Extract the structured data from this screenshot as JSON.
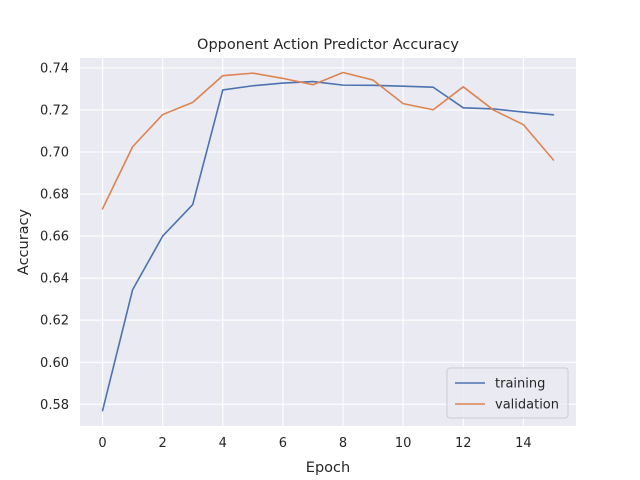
{
  "chart_data": {
    "type": "line",
    "title": "Opponent Action Predictor Accuracy",
    "xlabel": "Epoch",
    "ylabel": "Accuracy",
    "xlim": [
      -0.75,
      15.75
    ],
    "ylim": [
      0.5697,
      0.7447
    ],
    "xticks": [
      0,
      2,
      4,
      6,
      8,
      10,
      12,
      14
    ],
    "yticks": [
      0.58,
      0.6,
      0.62,
      0.64,
      0.66,
      0.68,
      0.7,
      0.72,
      0.74
    ],
    "xtick_labels": [
      "0",
      "2",
      "4",
      "6",
      "8",
      "10",
      "12",
      "14"
    ],
    "ytick_labels": [
      "0.58",
      "0.60",
      "0.62",
      "0.64",
      "0.66",
      "0.68",
      "0.70",
      "0.72",
      "0.74"
    ],
    "grid": true,
    "legend_position": "lower-right",
    "x": [
      0,
      1,
      2,
      3,
      4,
      5,
      6,
      7,
      8,
      9,
      10,
      11,
      12,
      13,
      14,
      15
    ],
    "series": [
      {
        "name": "training",
        "color": "#4c72b0",
        "values": [
          0.577,
          0.6345,
          0.66,
          0.675,
          0.7295,
          0.7315,
          0.7328,
          0.7335,
          0.7318,
          0.7317,
          0.7313,
          0.7308,
          0.721,
          0.7205,
          0.719,
          0.7177
        ]
      },
      {
        "name": "validation",
        "color": "#dd8452",
        "values": [
          0.673,
          0.7025,
          0.7178,
          0.7236,
          0.7363,
          0.7375,
          0.735,
          0.732,
          0.7378,
          0.7342,
          0.723,
          0.7201,
          0.731,
          0.72,
          0.713,
          0.6962
        ]
      }
    ],
    "colors": {
      "plot_background": "#eaeaf2",
      "grid": "#ffffff"
    }
  }
}
